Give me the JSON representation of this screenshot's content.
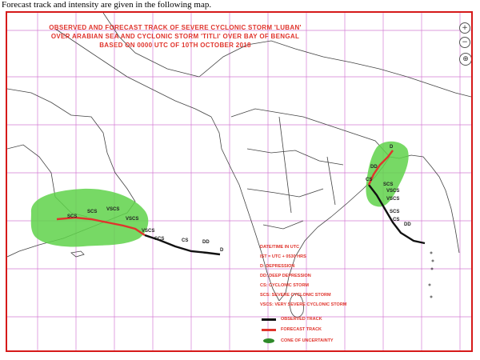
{
  "caption": "Forecast track and intensity are given in the following map.",
  "title": {
    "line1": "OBSERVED AND FORECAST TRACK OF SEVERE CYCLONIC STORM 'LUBAN'",
    "line2": "OVER ARABIAN SEA AND CYCLONIC STORM 'TITLI' OVER BAY OF BENGAL",
    "line3": "BASED ON 0000 UTC OF 10TH OCTOBER 2018"
  },
  "map_controls": {
    "zoom_in": "+",
    "zoom_out": "−",
    "compass": "⊕"
  },
  "legend": {
    "datetime": "DATE/TIME IN UTC",
    "ist": "IST = UTC + 0530 HRS",
    "d": "D: DEPRESSION",
    "dd": "DD: DEEP DEPRESSION",
    "cs": "CS: CYCLONIC STORM",
    "scs": "SCS: SEVERE CYCLONIC STORM",
    "vscs": "VSCS: VERY SEVERE CYCLONIC STORM",
    "observed": "OBSERVED TRACK",
    "forecast": "FORECAST TRACK",
    "cone": "CONE OF UNCERTAINTY"
  },
  "luban_labels": {
    "scs_1": "SCS",
    "scs_2": "SCS",
    "vscs_1": "VSCS",
    "vscs_2": "VSCS",
    "scs_3": "SCS",
    "cs": "CS",
    "dd": "DD",
    "d": "D"
  },
  "titli_labels": {
    "d": "D",
    "dd": "DD",
    "cs": "CS",
    "scs": "SCS",
    "vscs_1": "VSCS",
    "vscs_2": "VSCS",
    "scs_2": "SCS",
    "cs_2": "CS",
    "dd_2": "DD"
  },
  "colors": {
    "frame": "#d61a1a",
    "title": "#e0342c",
    "grid": "#cc66cc",
    "land_line": "#444444",
    "cone": "#5fd24a",
    "observed_track": "#111111",
    "forecast_track": "#e0342c"
  }
}
